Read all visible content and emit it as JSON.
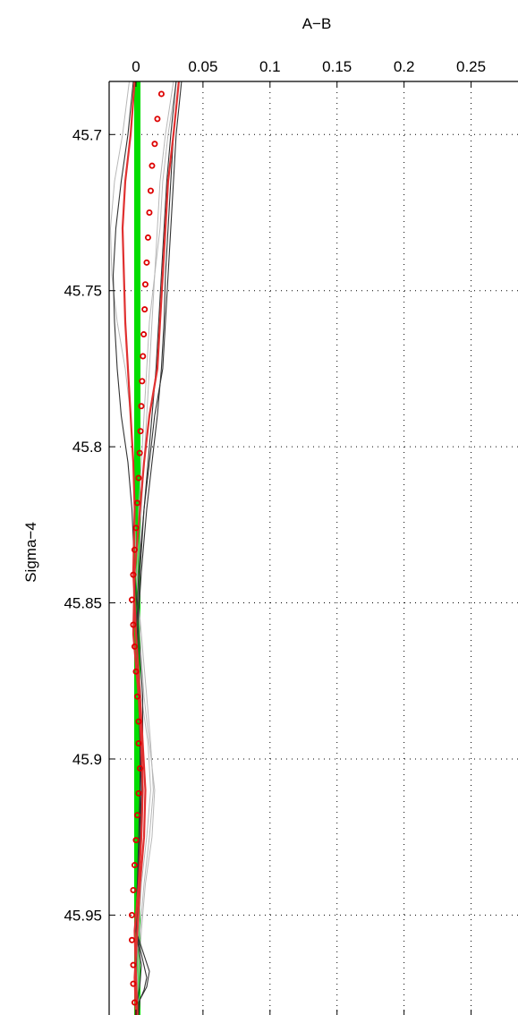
{
  "chart_data": {
    "type": "line",
    "title": "",
    "xlabel": "A−B",
    "ylabel": "Sigma−4",
    "x_axis_position": "top",
    "y_axis_reversed": true,
    "grid": true,
    "legend": "none",
    "xlim": [
      -0.02,
      0.285
    ],
    "ylim": [
      45.982,
      45.683
    ],
    "xticks": [
      0,
      0.05,
      0.1,
      0.15,
      0.2,
      0.25
    ],
    "xtick_labels": [
      "0",
      "0.05",
      "0.1",
      "0.15",
      "0.2",
      "0.25"
    ],
    "yticks": [
      45.7,
      45.75,
      45.8,
      45.85,
      45.9,
      45.95
    ],
    "ytick_labels": [
      "45.7",
      "45.75",
      "45.8",
      "45.85",
      "45.9",
      "45.95"
    ],
    "colors": {
      "reference": "#00dd00",
      "mean_line": "#e03030",
      "markers": "#dd0000",
      "profiles_dark": "#333333",
      "profiles_light": "#b8b8b8"
    },
    "series": [
      {
        "style": "reference",
        "color": "#00dd00",
        "x": [
          0.0,
          0.0
        ],
        "y": [
          45.683,
          45.982
        ]
      },
      {
        "style": "reference",
        "color": "#00dd00",
        "x": [
          0.002,
          0.002
        ],
        "y": [
          45.683,
          45.982
        ]
      },
      {
        "style": "light",
        "color": "#b8b8b8",
        "x": [
          0.03,
          0.024,
          0.02,
          0.018,
          0.014,
          0.01,
          0.008,
          0.006,
          0.004,
          0.002,
          0.001,
          0.003,
          0.006,
          0.01,
          0.014,
          0.012,
          0.007,
          0.004,
          0.002,
          0.002
        ],
        "y": [
          45.683,
          45.7,
          45.715,
          45.73,
          45.745,
          45.76,
          45.775,
          45.79,
          45.805,
          45.82,
          45.84,
          45.86,
          45.88,
          45.895,
          45.91,
          45.925,
          45.94,
          45.955,
          45.97,
          45.982
        ]
      },
      {
        "style": "light",
        "color": "#b8b8b8",
        "x": [
          -0.005,
          -0.01,
          -0.016,
          -0.019,
          -0.018,
          -0.014,
          -0.008,
          -0.004,
          -0.002,
          -0.001,
          0.0,
          0.004,
          0.008,
          0.011,
          0.013,
          0.01,
          0.006,
          0.003,
          0.001,
          0.001
        ],
        "y": [
          45.683,
          45.7,
          45.715,
          45.73,
          45.745,
          45.76,
          45.775,
          45.79,
          45.805,
          45.82,
          45.84,
          45.86,
          45.88,
          45.895,
          45.91,
          45.925,
          45.94,
          45.955,
          45.97,
          45.982
        ]
      },
      {
        "style": "light",
        "color": "#b8b8b8",
        "x": [
          0.028,
          0.022,
          0.018,
          0.016,
          0.014,
          0.012,
          0.01,
          0.008,
          0.006,
          0.004,
          0.002,
          0.0,
          0.004,
          0.009,
          0.011,
          0.008,
          0.004,
          0.002,
          0.0,
          0.0
        ],
        "y": [
          45.683,
          45.7,
          45.715,
          45.73,
          45.745,
          45.76,
          45.775,
          45.79,
          45.805,
          45.82,
          45.84,
          45.86,
          45.88,
          45.895,
          45.91,
          45.925,
          45.94,
          45.955,
          45.97,
          45.982
        ]
      },
      {
        "style": "dark",
        "color": "#333333",
        "x": [
          -0.002,
          -0.006,
          -0.011,
          -0.015,
          -0.017,
          -0.016,
          -0.014,
          -0.011,
          -0.006,
          -0.003,
          -0.001,
          0.002,
          0.005,
          0.005,
          0.004,
          0.003,
          0.002,
          0.001,
          0.0,
          0.0
        ],
        "y": [
          45.683,
          45.7,
          45.715,
          45.73,
          45.745,
          45.76,
          45.775,
          45.79,
          45.805,
          45.82,
          45.84,
          45.86,
          45.88,
          45.895,
          45.91,
          45.925,
          45.94,
          45.955,
          45.97,
          45.982
        ]
      },
      {
        "style": "dark",
        "color": "#333333",
        "x": [
          0.034,
          0.03,
          0.028,
          0.026,
          0.024,
          0.022,
          0.02,
          0.014,
          0.01,
          0.006,
          0.002,
          0.0,
          0.002,
          0.004,
          0.004,
          0.004,
          0.002,
          0.0,
          0.008,
          0.006,
          0.002,
          0.002
        ],
        "y": [
          45.683,
          45.7,
          45.715,
          45.73,
          45.745,
          45.76,
          45.775,
          45.79,
          45.805,
          45.82,
          45.84,
          45.86,
          45.88,
          45.895,
          45.91,
          45.925,
          45.94,
          45.955,
          45.97,
          45.974,
          45.978,
          45.982
        ]
      },
      {
        "style": "dark",
        "color": "#333333",
        "x": [
          0.03,
          0.026,
          0.023,
          0.021,
          0.019,
          0.017,
          0.015,
          0.012,
          0.009,
          0.006,
          0.003,
          0.001,
          0.002,
          0.003,
          0.003,
          0.002,
          0.001,
          0.0,
          0.004,
          0.003,
          0.001,
          0.001
        ],
        "y": [
          45.683,
          45.7,
          45.715,
          45.73,
          45.745,
          45.76,
          45.775,
          45.79,
          45.805,
          45.82,
          45.84,
          45.86,
          45.88,
          45.895,
          45.91,
          45.925,
          45.94,
          45.955,
          45.966,
          45.972,
          45.978,
          45.982
        ]
      },
      {
        "style": "dark",
        "color": "#333333",
        "x": [
          0.032,
          0.028,
          0.026,
          0.024,
          0.022,
          0.021,
          0.019,
          0.016,
          0.012,
          0.008,
          0.004,
          0.001,
          0.003,
          0.004,
          0.003,
          0.003,
          0.001,
          0.0,
          0.01,
          0.008,
          0.003,
          0.002
        ],
        "y": [
          45.683,
          45.7,
          45.715,
          45.73,
          45.745,
          45.76,
          45.775,
          45.79,
          45.805,
          45.82,
          45.84,
          45.86,
          45.88,
          45.895,
          45.91,
          45.925,
          45.94,
          45.955,
          45.968,
          45.973,
          45.977,
          45.982
        ]
      },
      {
        "style": "mean",
        "color": "#e03030",
        "x": [
          0.032,
          0.028,
          0.024,
          0.022,
          0.02,
          0.018,
          0.016,
          0.01,
          0.006,
          0.003,
          -0.001,
          -0.002,
          0.002,
          0.004,
          0.005,
          0.004,
          0.002,
          -0.001,
          0.0,
          0.001
        ],
        "y": [
          45.683,
          45.7,
          45.715,
          45.73,
          45.745,
          45.76,
          45.775,
          45.79,
          45.805,
          45.82,
          45.84,
          45.86,
          45.88,
          45.895,
          45.91,
          45.925,
          45.94,
          45.955,
          45.97,
          45.982
        ]
      },
      {
        "style": "mean",
        "color": "#e03030",
        "x": [
          -0.001,
          -0.004,
          -0.008,
          -0.01,
          -0.009,
          -0.008,
          -0.006,
          -0.004,
          -0.002,
          -0.001,
          -0.002,
          0.0,
          0.003,
          0.005,
          0.007,
          0.006,
          0.003,
          0.001,
          -0.001,
          0.0
        ],
        "y": [
          45.683,
          45.7,
          45.715,
          45.73,
          45.745,
          45.76,
          45.775,
          45.79,
          45.805,
          45.82,
          45.84,
          45.86,
          45.88,
          45.895,
          45.91,
          45.925,
          45.94,
          45.955,
          45.97,
          45.982
        ]
      },
      {
        "style": "markers",
        "color": "#dd0000",
        "x": [
          0.019,
          0.016,
          0.014,
          0.012,
          0.011,
          0.01,
          0.009,
          0.008,
          0.007,
          0.0065,
          0.0058,
          0.0052,
          0.0046,
          0.004,
          0.0034,
          0.0028,
          0.002,
          0.001,
          0.0,
          -0.001,
          -0.002,
          -0.003,
          -0.002,
          -0.001,
          0.0,
          0.001,
          0.002,
          0.002,
          0.003,
          0.002,
          0.001,
          0.0,
          -0.001,
          -0.002,
          -0.003,
          -0.003,
          -0.002,
          -0.002,
          -0.001
        ],
        "y": [
          45.687,
          45.695,
          45.703,
          45.71,
          45.718,
          45.725,
          45.733,
          45.741,
          45.748,
          45.756,
          45.764,
          45.771,
          45.779,
          45.787,
          45.795,
          45.802,
          45.81,
          45.818,
          45.826,
          45.833,
          45.841,
          45.849,
          45.857,
          45.864,
          45.872,
          45.88,
          45.888,
          45.895,
          45.903,
          45.911,
          45.918,
          45.926,
          45.934,
          45.942,
          45.95,
          45.958,
          45.966,
          45.972,
          45.978
        ]
      }
    ]
  }
}
